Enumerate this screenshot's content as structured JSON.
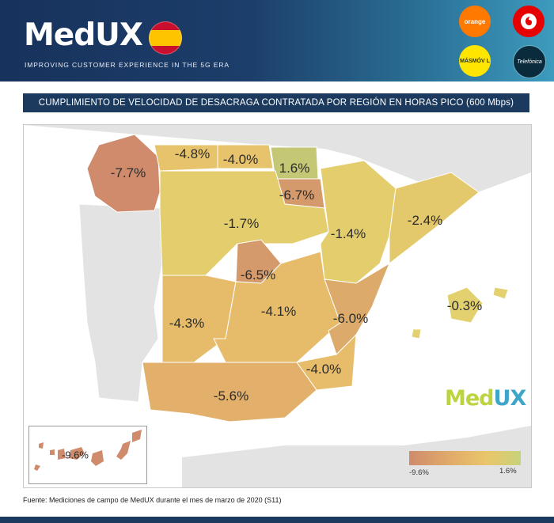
{
  "header": {
    "brand": "MedUX",
    "tagline": "IMPROVING CUSTOMER EXPERIENCE IN THE 5G ERA",
    "flag_icon": "spain-flag-icon",
    "operators": [
      {
        "name": "orange",
        "label": "orange",
        "color": "#ff7900"
      },
      {
        "name": "vodafone",
        "label": "",
        "color": "#e60000"
      },
      {
        "name": "masmovil",
        "label": "MÁSMÓV L",
        "color": "#ffe600"
      },
      {
        "name": "telefonica",
        "label": "Telefónica",
        "color": "#0a2b3c"
      }
    ]
  },
  "title": "CUMPLIMIENTO DE VELOCIDAD DE DESACRAGA CONTRATADA POR REGIÓN EN HORAS PICO (600 Mbps)",
  "regions": [
    {
      "name": "Galicia",
      "value": "-7.7%"
    },
    {
      "name": "Asturias",
      "value": "-4.8%"
    },
    {
      "name": "Cantabria",
      "value": "-4.0%"
    },
    {
      "name": "País Vasco",
      "value": "1.6%"
    },
    {
      "name": "La Rioja / Navarra",
      "value": "-6.7%"
    },
    {
      "name": "Castilla y León",
      "value": "-1.7%"
    },
    {
      "name": "Aragón",
      "value": "-1.4%"
    },
    {
      "name": "Cataluña",
      "value": "-2.4%"
    },
    {
      "name": "Madrid",
      "value": "-6.5%"
    },
    {
      "name": "Extremadura",
      "value": "-4.3%"
    },
    {
      "name": "Castilla-La Mancha",
      "value": "-4.1%"
    },
    {
      "name": "Comunidad Valenciana",
      "value": "-6.0%"
    },
    {
      "name": "Baleares",
      "value": "-0.3%"
    },
    {
      "name": "Murcia",
      "value": "-4.0%"
    },
    {
      "name": "Andalucía",
      "value": "-5.6%"
    },
    {
      "name": "Canarias",
      "value": "-9.6%"
    }
  ],
  "legend": {
    "min_label": "-9.6%",
    "max_label": "1.6%",
    "min_color": "#cf8b6c",
    "max_color": "#c8d27b"
  },
  "watermark": {
    "part1": "Med",
    "part2": "UX"
  },
  "source": "Fuente: Mediciones de campo de MedUX durante el mes de marzo de 2020 (S11)"
}
